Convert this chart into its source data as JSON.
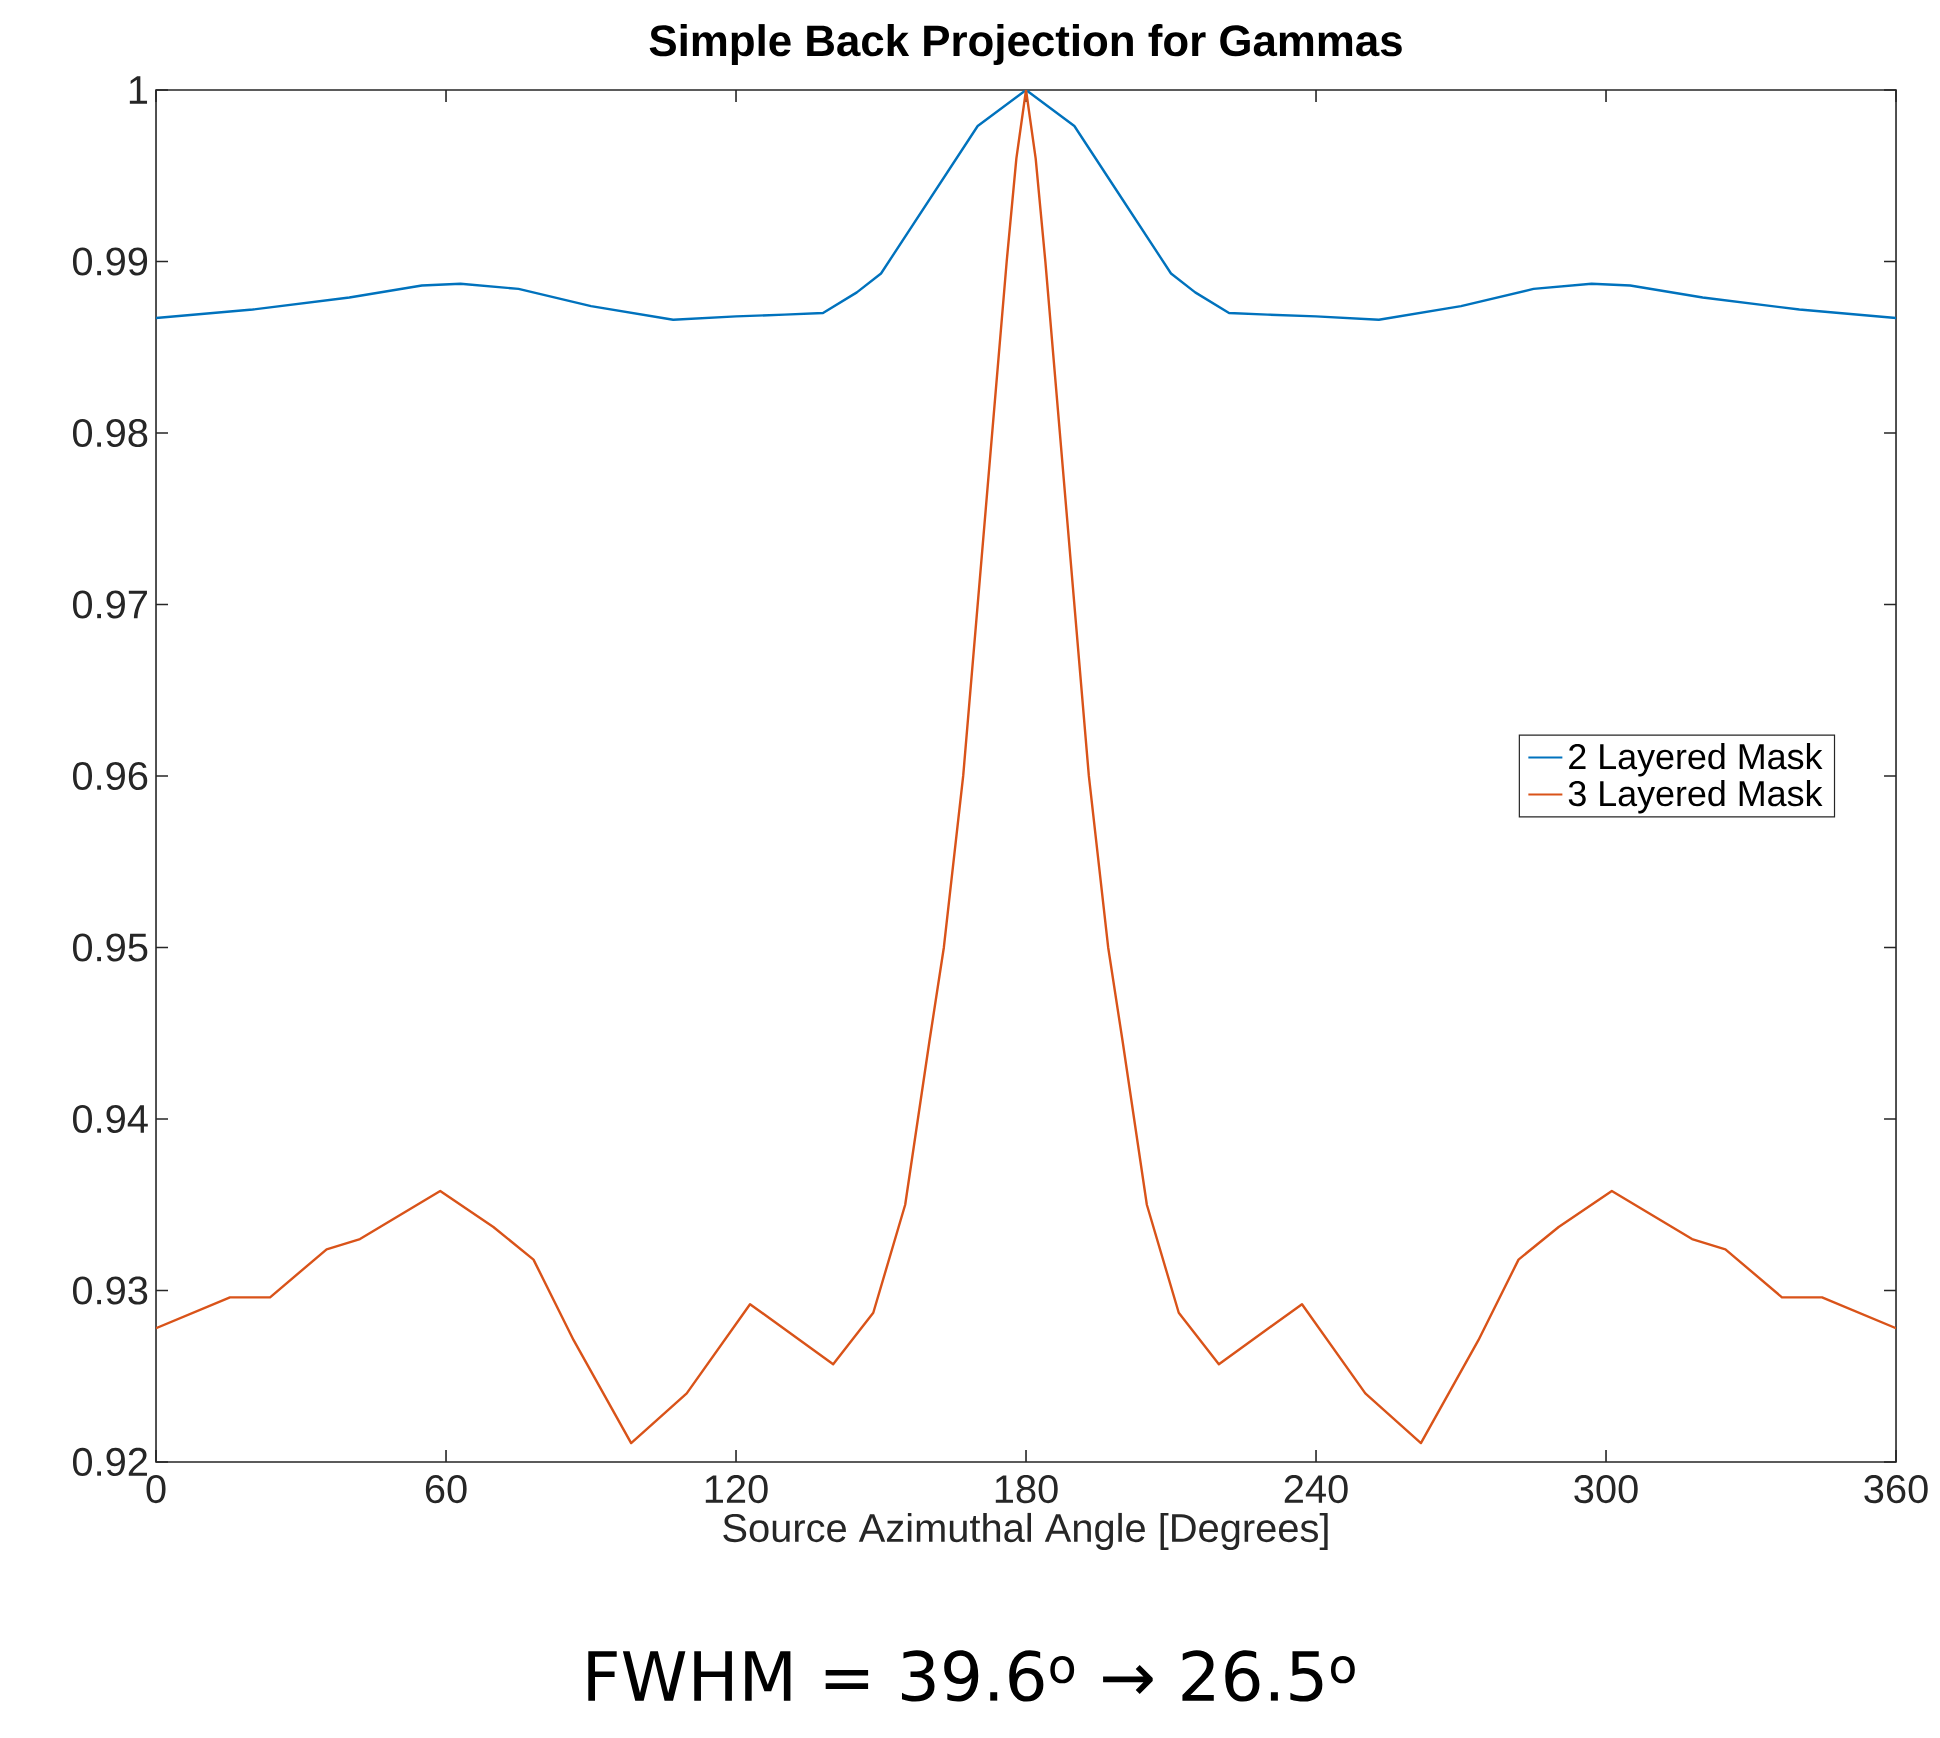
{
  "chart_data": {
    "type": "line",
    "title": "Simple Back Projection for Gammas",
    "xlabel": "Source Azimuthal Angle [Degrees]",
    "annotations": [
      "FWHM = 39.6$^{o}$ → 26.5$^{o}$"
    ],
    "series": [
      {
        "name": "2 Layered Mask",
        "color": "#0072bd",
        "x": [
          0,
          20,
          40,
          55,
          63,
          75,
          90,
          107,
          120,
          130,
          138,
          145,
          150,
          160,
          170,
          180,
          190,
          200,
          210,
          215,
          222,
          230,
          240,
          253,
          270,
          285,
          297,
          305,
          320,
          340,
          360
        ],
        "values": [
          0.9867,
          0.9872,
          0.9879,
          0.9886,
          0.9887,
          0.9884,
          0.9874,
          0.9866,
          0.9868,
          0.9869,
          0.987,
          0.9882,
          0.9893,
          0.9936,
          0.9979,
          1.0,
          0.9979,
          0.9936,
          0.9893,
          0.9882,
          0.987,
          0.9869,
          0.9868,
          0.9866,
          0.9874,
          0.9884,
          0.9887,
          0.9886,
          0.9879,
          0.9872,
          0.9867
        ]
      },
      {
        "name": "3 Layered Mask",
        "color": "#d95319",
        "x": [
          0,
          15.3,
          23.6,
          35.3,
          42.2,
          58.8,
          69.8,
          78.1,
          86.4,
          98.3,
          109.8,
          122.9,
          140.1,
          148.4,
          155,
          160,
          163,
          167,
          170,
          173,
          176,
          178,
          180,
          182,
          184,
          187,
          190,
          193,
          197,
          200,
          205,
          211.6,
          219.9,
          237.1,
          250.2,
          261.7,
          273.6,
          281.9,
          290.2,
          301.2,
          317.8,
          324.7,
          336.4,
          344.7,
          360
        ],
        "values": [
          0.9278,
          0.9296,
          0.9296,
          0.9324,
          0.933,
          0.9358,
          0.9337,
          0.9318,
          0.9271,
          0.9211,
          0.924,
          0.9292,
          0.9257,
          0.9287,
          0.935,
          0.9445,
          0.95,
          0.96,
          0.97,
          0.98,
          0.99,
          0.996,
          1.0,
          0.996,
          0.99,
          0.98,
          0.97,
          0.96,
          0.95,
          0.9445,
          0.935,
          0.9287,
          0.9257,
          0.9292,
          0.924,
          0.9211,
          0.9271,
          0.9318,
          0.9337,
          0.9358,
          0.933,
          0.9324,
          0.9296,
          0.9296,
          0.9278
        ]
      }
    ],
    "xlim": [
      0,
      360
    ],
    "ylim": [
      0.92,
      1
    ],
    "xticks": [
      0,
      60,
      120,
      180,
      240,
      300,
      360
    ],
    "yticks": [
      0.92,
      0.93,
      0.94,
      0.95,
      0.96,
      0.97,
      0.98,
      0.99,
      1
    ],
    "legend": "right"
  }
}
